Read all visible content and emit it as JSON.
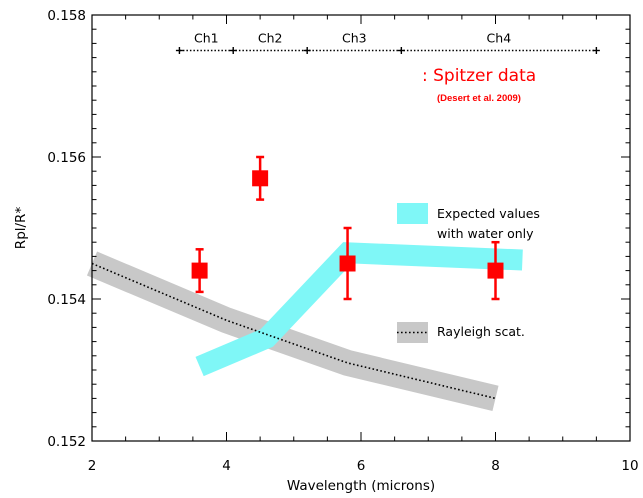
{
  "chart_data": {
    "type": "scatter",
    "xlabel": "Wavelength (microns)",
    "ylabel": "Rpl/R*",
    "xlim": [
      2,
      10
    ],
    "ylim": [
      0.152,
      0.158
    ],
    "x_ticks": [
      "2",
      "4",
      "6",
      "8",
      "10"
    ],
    "y_ticks": [
      "0.152",
      "0.154",
      "0.156",
      "0.158"
    ],
    "series": [
      {
        "name": ": Spitzer data",
        "color": "#ff0000",
        "marker": "square",
        "points": [
          {
            "x": 3.6,
            "y": 0.1544,
            "yerr_low": 0.1541,
            "yerr_high": 0.1547
          },
          {
            "x": 4.5,
            "y": 0.1557,
            "yerr_low": 0.1554,
            "yerr_high": 0.156
          },
          {
            "x": 5.8,
            "y": 0.1545,
            "yerr_low": 0.154,
            "yerr_high": 0.155
          },
          {
            "x": 8.0,
            "y": 0.1544,
            "yerr_low": 0.154,
            "yerr_high": 0.1548
          }
        ]
      },
      {
        "name": "Expected values with water only",
        "legend_lines": [
          "Expected values",
          "with water only"
        ],
        "color": "#7ff7f7",
        "style": "band",
        "points": [
          {
            "x": 3.6,
            "y": 0.15305
          },
          {
            "x": 4.6,
            "y": 0.15345
          },
          {
            "x": 5.8,
            "y": 0.15465
          },
          {
            "x": 8.4,
            "y": 0.15455
          }
        ]
      },
      {
        "name": "Rayleigh scat.",
        "color": "#c8c8c8",
        "line_color": "#000000",
        "style": "band-dotted",
        "points": [
          {
            "x": 2.0,
            "y": 0.1545
          },
          {
            "x": 4.0,
            "y": 0.1537
          },
          {
            "x": 5.8,
            "y": 0.1531
          },
          {
            "x": 8.0,
            "y": 0.1526
          }
        ]
      }
    ],
    "annotations": {
      "spitzer_label": ": Spitzer data",
      "spitzer_citation": "(Desert et al. 2009)",
      "channels": [
        {
          "label": "Ch1",
          "x_start": 3.3,
          "x_end": 4.1
        },
        {
          "label": "Ch2",
          "x_start": 4.1,
          "x_end": 5.2
        },
        {
          "label": "Ch3",
          "x_start": 5.2,
          "x_end": 6.6
        },
        {
          "label": "Ch4",
          "x_start": 6.6,
          "x_end": 9.5
        }
      ],
      "channel_y": 0.1575
    },
    "grid": false,
    "legend_placement": "right"
  }
}
